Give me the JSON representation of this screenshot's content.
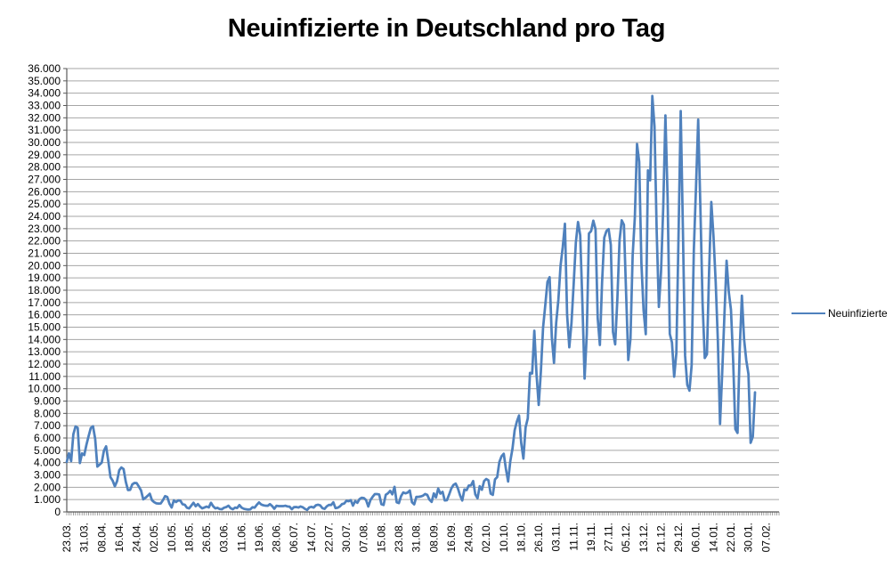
{
  "title": "Neuinfizierte in Deutschland pro Tag",
  "colors": {
    "series_line": "#4F81BD",
    "gridline": "#A6A6A6",
    "axis_line": "#595959",
    "tick": "#808080",
    "text": "#000000",
    "background": "#FFFFFF"
  },
  "chart_data": {
    "type": "line",
    "title": "Neuinfizierte in Deutschland pro Tag",
    "legend_position": "right",
    "grid": "horizontal",
    "x_axis": {
      "tick_labels": [
        "23.03.",
        "31.03.",
        "08.04.",
        "16.04.",
        "24.04.",
        "02.05.",
        "10.05.",
        "18.05.",
        "26.05.",
        "03.06.",
        "11.06.",
        "19.06.",
        "28.06.",
        "06.07.",
        "14.07.",
        "22.07.",
        "30.07.",
        "07.08.",
        "15.08.",
        "23.08.",
        "31.08.",
        "08.09.",
        "16.09.",
        "24.09.",
        "02.10.",
        "10.10.",
        "18.10.",
        "26.10.",
        "03.11.",
        "11.11.",
        "19.11.",
        "27.11.",
        "05.12.",
        "13.12.",
        "21.12.",
        "29.12.",
        "06.01.",
        "14.01.",
        "22.01.",
        "30.01.",
        "07.02."
      ],
      "tick_label_interval_days": 8,
      "label_rotation_deg": -90,
      "total_slots": 327
    },
    "y_axis": {
      "min": 0,
      "max": 36000,
      "step": 1000,
      "tick_labels": [
        "0",
        "1.000",
        "2.000",
        "3.000",
        "4.000",
        "5.000",
        "6.000",
        "7.000",
        "8.000",
        "9.000",
        "10.000",
        "11.000",
        "12.000",
        "13.000",
        "14.000",
        "15.000",
        "16.000",
        "17.000",
        "18.000",
        "19.000",
        "20.000",
        "21.000",
        "22.000",
        "23.000",
        "24.000",
        "25.000",
        "26.000",
        "27.000",
        "28.000",
        "29.000",
        "30.000",
        "31.000",
        "32.000",
        "33.000",
        "34.000",
        "35.000",
        "36.000"
      ]
    },
    "series": [
      {
        "name": "Neuinfizierte",
        "color": "#4F81BD",
        "values": [
          4062,
          4764,
          4118,
          6294,
          6933,
          6824,
          3965,
          4751,
          4615,
          5453,
          6156,
          6813,
          6955,
          5936,
          3677,
          3834,
          4003,
          4974,
          5323,
          4133,
          2821,
          2537,
          2082,
          2486,
          3380,
          3609,
          3481,
          2458,
          1775,
          1785,
          2237,
          2352,
          2337,
          2055,
          1737,
          1018,
          1144,
          1304,
          1478,
          945,
          793,
          697,
          679,
          685,
          947,
          1284,
          1209,
          667,
          357,
          933,
          798,
          933,
          913,
          620,
          583,
          342,
          285,
          513,
          745,
          460,
          638,
          431,
          289,
          358,
          432,
          362,
          741,
          460,
          286,
          333,
          233,
          213,
          342,
          394,
          507,
          301,
          214,
          350,
          318,
          555,
          348,
          258,
          213,
          192,
          210,
          378,
          345,
          580,
          770,
          601,
          537,
          503,
          498,
          630,
          477,
          256,
          498,
          470,
          466,
          466,
          503,
          446,
          422,
          219,
          390,
          397,
          356,
          442,
          378,
          248,
          159,
          365,
          412,
          351,
          534,
          583,
          529,
          305,
          249,
          454,
          569,
          557,
          781,
          305,
          340,
          445,
          633,
          684,
          902,
          870,
          955,
          509,
          879,
          741,
          1045,
          1147,
          1122,
          955,
          436,
          966,
          1226,
          1449,
          1445,
          1415,
          625,
          561,
          1390,
          1510,
          1707,
          1427,
          2034,
          782,
          711,
          1278,
          1576,
          1507,
          1571,
          1737,
          785,
          610,
          1218,
          1218,
          1256,
          1311,
          1453,
          1378,
          988,
          814,
          1499,
          1176,
          1892,
          1484,
          1630,
          927,
          948,
          1407,
          1901,
          2194,
          2297,
          1916,
          1345,
          922,
          1821,
          1769,
          2143,
          2153,
          2507,
          1411,
          1111,
          2089,
          1798,
          2503,
          2673,
          2563,
          1490,
          1382,
          2639,
          2828,
          4058,
          4516,
          4721,
          3483,
          2467,
          4122,
          5132,
          6638,
          7334,
          7830,
          5587,
          4325,
          6868,
          7595,
          11287,
          11242,
          14714,
          11176,
          8685,
          11409,
          14964,
          16774,
          18681,
          19059,
          14177,
          12097,
          15352,
          17214,
          19990,
          21506,
          23399,
          16017,
          13363,
          15332,
          18487,
          21866,
          23542,
          22461,
          16947,
          10824,
          14419,
          22609,
          22806,
          23648,
          22964,
          15741,
          13554,
          18633,
          22268,
          22806,
          22964,
          21695,
          14611,
          13604,
          17270,
          22046,
          23679,
          23318,
          17767,
          12332,
          14054,
          20815,
          23928,
          29875,
          28438,
          20200,
          16362,
          14432,
          27728,
          26923,
          33777,
          31300,
          22771,
          16643,
          19528,
          24740,
          32195,
          25533,
          14455,
          13755,
          10976,
          12892,
          22459,
          32552,
          22924,
          12690,
          10315,
          9847,
          11897,
          21237,
          26391,
          31849,
          24694,
          16946,
          12497,
          12802,
          19600,
          25164,
          22368,
          18678,
          13882,
          7141,
          11369,
          15974,
          20398,
          17862,
          16417,
          12257,
          6729,
          6412,
          13202,
          17553,
          14022,
          12321,
          11192,
          5608,
          6114,
          9705
        ]
      }
    ]
  }
}
